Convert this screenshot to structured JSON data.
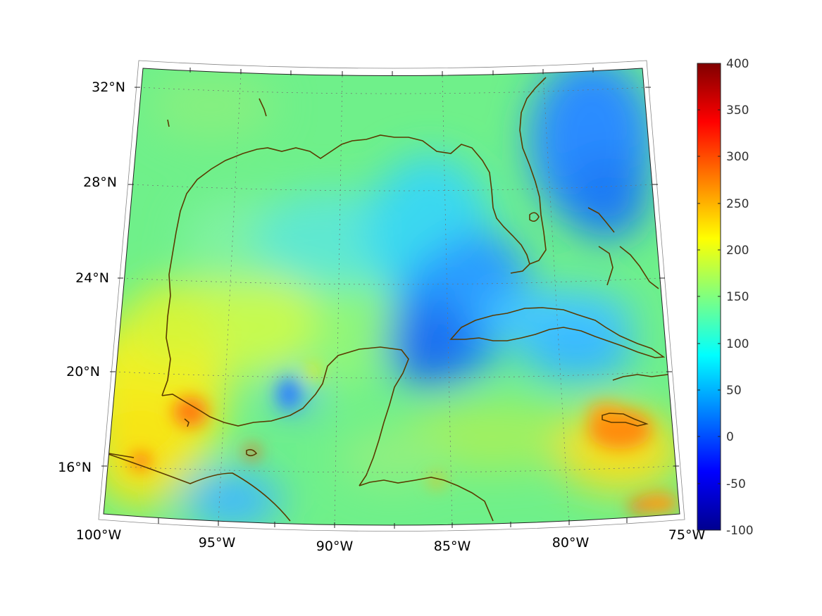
{
  "map": {
    "projection": "conic",
    "colormap": "jet",
    "coastline_color": "#5a3a00",
    "grid": "dotted",
    "lon_ticks": [
      "100°W",
      "95°W",
      "90°W",
      "85°W",
      "80°W",
      "75°W"
    ],
    "lat_ticks": [
      "32°N",
      "28°N",
      "24°N",
      "20°N",
      "16°N"
    ]
  },
  "colorbar": {
    "ticks": [
      "400",
      "350",
      "300",
      "250",
      "200",
      "150",
      "100",
      "50",
      "0",
      "-50",
      "-100"
    ],
    "range": [
      -100,
      400
    ],
    "colors": [
      "#00008f",
      "#0000ff",
      "#00ffff",
      "#ffff00",
      "#ff0000",
      "#800000"
    ]
  }
}
